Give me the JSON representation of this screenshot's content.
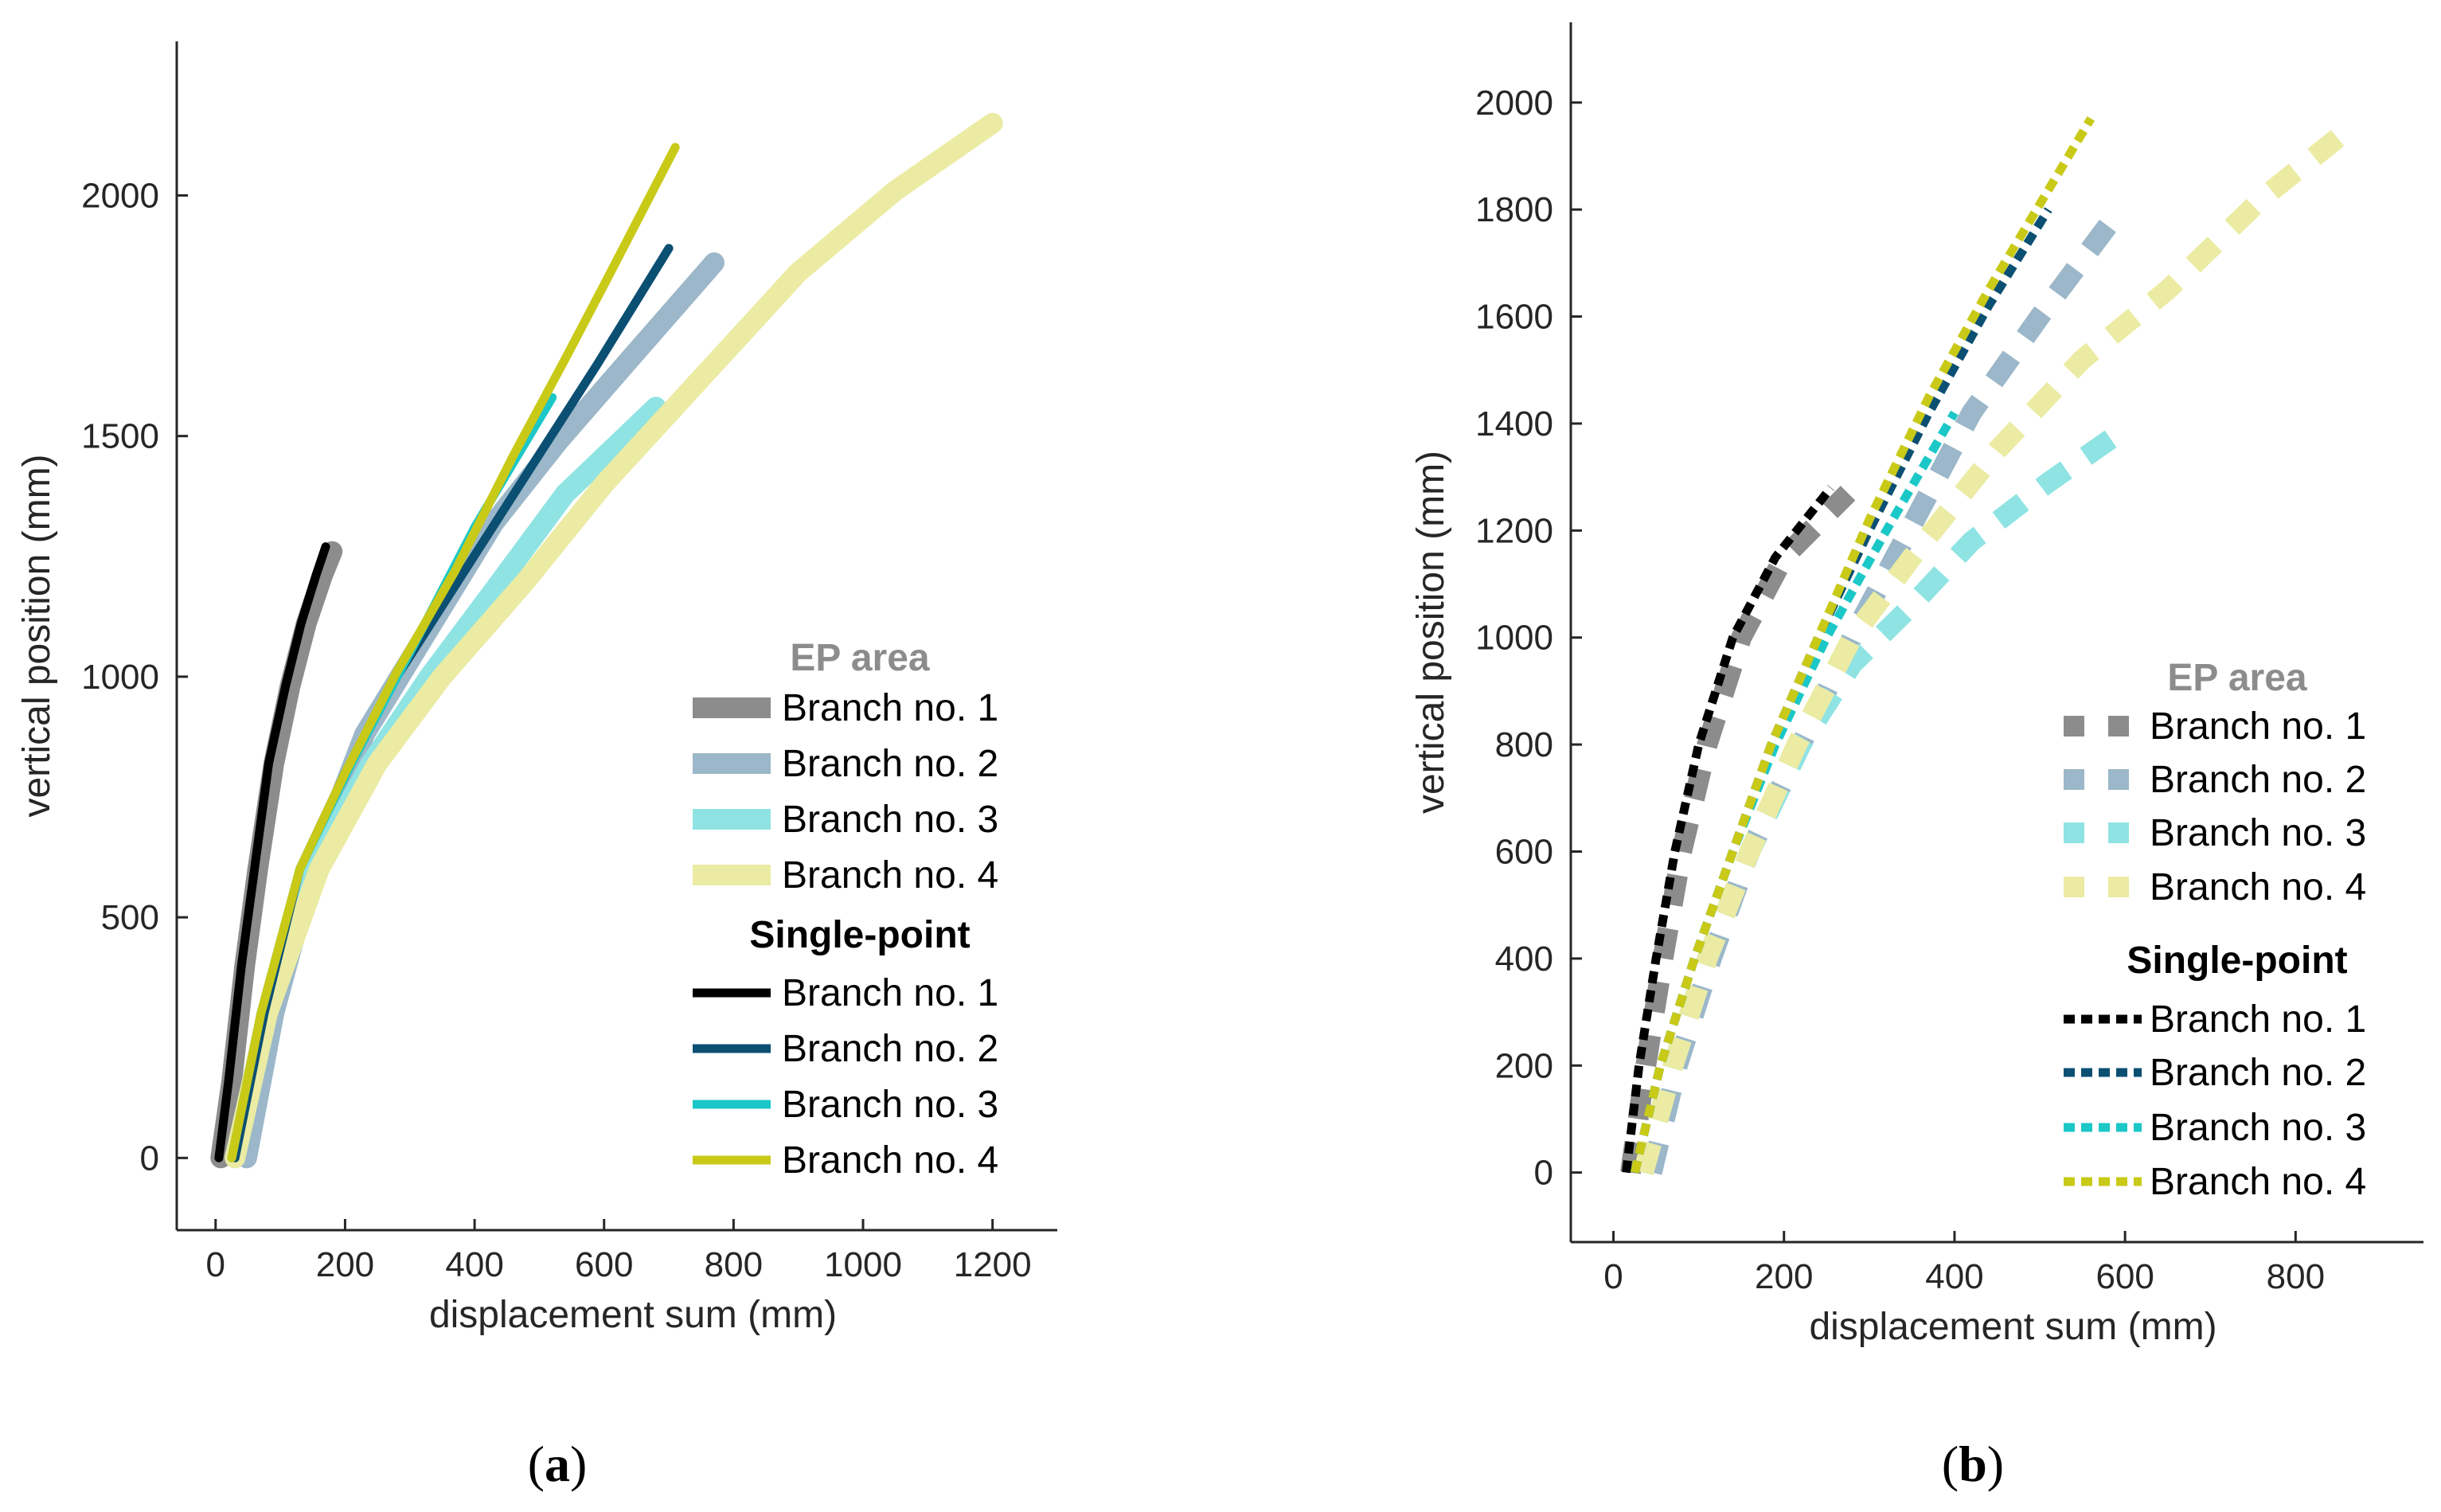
{
  "chart_data": [
    {
      "type": "line",
      "panel_label": "a",
      "xlabel": "displacement sum (mm)",
      "ylabel": "vertical position (mm)",
      "xlim": [
        -60,
        1300
      ],
      "ylim": [
        -150,
        2320
      ],
      "xticks": [
        0,
        200,
        400,
        600,
        800,
        1000,
        1200
      ],
      "yticks": [
        0,
        500,
        1000,
        1500,
        2000
      ],
      "grid": false,
      "legend_placement": "lower-right",
      "legend_groups": [
        {
          "title": "EP area",
          "group": "ep"
        },
        {
          "title": "Single-point",
          "group": "sp"
        }
      ],
      "series": [
        {
          "name": "Branch no. 1",
          "group": "ep",
          "color": "#8c8c8c",
          "style": "solid",
          "points": [
            [
              8,
              0
            ],
            [
              25,
              160
            ],
            [
              45,
              400
            ],
            [
              65,
              600
            ],
            [
              90,
              820
            ],
            [
              115,
              980
            ],
            [
              140,
              1110
            ],
            [
              165,
              1210
            ],
            [
              180,
              1260
            ]
          ]
        },
        {
          "name": "Branch no. 2",
          "group": "ep",
          "color": "#9bb7c9",
          "style": "solid",
          "points": [
            [
              48,
              0
            ],
            [
              90,
              300
            ],
            [
              150,
              600
            ],
            [
              230,
              880
            ],
            [
              330,
              1100
            ],
            [
              430,
              1320
            ],
            [
              530,
              1490
            ],
            [
              640,
              1660
            ],
            [
              770,
              1860
            ]
          ]
        },
        {
          "name": "Branch no. 3",
          "group": "ep",
          "color": "#8fe3e3",
          "style": "solid",
          "points": [
            [
              30,
              0
            ],
            [
              80,
              300
            ],
            [
              150,
              600
            ],
            [
              240,
              820
            ],
            [
              330,
              1000
            ],
            [
              430,
              1180
            ],
            [
              540,
              1380
            ],
            [
              680,
              1560
            ]
          ]
        },
        {
          "name": "Branch no. 4",
          "group": "ep",
          "color": "#ebeba3",
          "style": "solid",
          "points": [
            [
              30,
              0
            ],
            [
              80,
              300
            ],
            [
              160,
              600
            ],
            [
              250,
              820
            ],
            [
              350,
              1000
            ],
            [
              480,
              1200
            ],
            [
              600,
              1400
            ],
            [
              750,
              1620
            ],
            [
              900,
              1840
            ],
            [
              1050,
              2010
            ],
            [
              1200,
              2150
            ]
          ]
        },
        {
          "name": "Branch no. 1",
          "group": "sp",
          "color": "#000000",
          "style": "solid",
          "points": [
            [
              5,
              0
            ],
            [
              20,
              160
            ],
            [
              40,
              400
            ],
            [
              60,
              600
            ],
            [
              82,
              820
            ],
            [
              108,
              980
            ],
            [
              132,
              1110
            ],
            [
              155,
              1210
            ],
            [
              170,
              1270
            ]
          ]
        },
        {
          "name": "Branch no. 2",
          "group": "sp",
          "color": "#0b4f73",
          "style": "solid",
          "points": [
            [
              30,
              0
            ],
            [
              75,
              300
            ],
            [
              130,
              600
            ],
            [
              200,
              800
            ],
            [
              280,
              1000
            ],
            [
              380,
              1210
            ],
            [
              480,
              1420
            ],
            [
              590,
              1650
            ],
            [
              700,
              1890
            ]
          ]
        },
        {
          "name": "Branch no. 3",
          "group": "sp",
          "color": "#1cc7c7",
          "style": "solid",
          "points": [
            [
              25,
              0
            ],
            [
              70,
              300
            ],
            [
              130,
              600
            ],
            [
              210,
              820
            ],
            [
              300,
              1050
            ],
            [
              400,
              1310
            ],
            [
              520,
              1580
            ]
          ]
        },
        {
          "name": "Branch no. 4",
          "group": "sp",
          "color": "#c9c918",
          "style": "solid",
          "points": [
            [
              25,
              0
            ],
            [
              70,
              300
            ],
            [
              130,
              600
            ],
            [
              200,
              800
            ],
            [
              280,
              1010
            ],
            [
              370,
              1220
            ],
            [
              460,
              1460
            ],
            [
              540,
              1660
            ],
            [
              610,
              1840
            ],
            [
              710,
              2100
            ]
          ]
        }
      ]
    },
    {
      "type": "line",
      "panel_label": "b",
      "xlabel": "displacement sum (mm)",
      "ylabel": "vertical position (mm)",
      "xlim": [
        -50,
        950
      ],
      "ylim": [
        -130,
        2150
      ],
      "xticks": [
        0,
        200,
        400,
        600,
        800
      ],
      "yticks": [
        0,
        200,
        400,
        600,
        800,
        1000,
        1200,
        1400,
        1600,
        1800,
        2000
      ],
      "grid": false,
      "legend_placement": "lower-right",
      "legend_groups": [
        {
          "title": "EP area",
          "group": "ep"
        },
        {
          "title": "Single-point",
          "group": "sp"
        }
      ],
      "series": [
        {
          "name": "Branch no. 1",
          "group": "ep",
          "color": "#8c8c8c",
          "style": "dashed",
          "points": [
            [
              20,
              0
            ],
            [
              38,
              200
            ],
            [
              58,
              400
            ],
            [
              80,
              600
            ],
            [
              110,
              800
            ],
            [
              150,
              1000
            ],
            [
              200,
              1150
            ],
            [
              275,
              1270
            ]
          ]
        },
        {
          "name": "Branch no. 2",
          "group": "ep",
          "color": "#9bb7c9",
          "style": "dashed",
          "points": [
            [
              45,
              0
            ],
            [
              75,
              200
            ],
            [
              115,
              400
            ],
            [
              160,
              600
            ],
            [
              220,
              800
            ],
            [
              280,
              1000
            ],
            [
              340,
              1180
            ],
            [
              420,
              1420
            ],
            [
              500,
              1600
            ],
            [
              580,
              1770
            ]
          ]
        },
        {
          "name": "Branch no. 3",
          "group": "ep",
          "color": "#8fe3e3",
          "style": "dashed",
          "points": [
            [
              35,
              0
            ],
            [
              70,
              200
            ],
            [
              110,
              400
            ],
            [
              160,
              600
            ],
            [
              220,
              800
            ],
            [
              280,
              950
            ],
            [
              350,
              1060
            ],
            [
              420,
              1180
            ],
            [
              510,
              1290
            ],
            [
              600,
              1390
            ]
          ]
        },
        {
          "name": "Branch no. 4",
          "group": "ep",
          "color": "#ebeba3",
          "style": "dashed",
          "points": [
            [
              35,
              0
            ],
            [
              70,
              200
            ],
            [
              110,
              400
            ],
            [
              160,
              600
            ],
            [
              215,
              800
            ],
            [
              280,
              1000
            ],
            [
              350,
              1150
            ],
            [
              450,
              1350
            ],
            [
              550,
              1520
            ],
            [
              650,
              1650
            ],
            [
              760,
              1820
            ],
            [
              870,
              1960
            ]
          ]
        },
        {
          "name": "Branch no. 1",
          "group": "sp",
          "color": "#000000",
          "style": "dotted",
          "points": [
            [
              15,
              0
            ],
            [
              30,
              200
            ],
            [
              50,
              400
            ],
            [
              72,
              600
            ],
            [
              100,
              800
            ],
            [
              140,
              1000
            ],
            [
              190,
              1150
            ],
            [
              255,
              1280
            ]
          ]
        },
        {
          "name": "Branch no. 2",
          "group": "sp",
          "color": "#0b4f73",
          "style": "dotted",
          "points": [
            [
              25,
              0
            ],
            [
              55,
              200
            ],
            [
              95,
              400
            ],
            [
              140,
              600
            ],
            [
              185,
              800
            ],
            [
              240,
              1000
            ],
            [
              300,
              1200
            ],
            [
              370,
              1420
            ],
            [
              440,
              1620
            ],
            [
              510,
              1800
            ]
          ]
        },
        {
          "name": "Branch no. 3",
          "group": "sp",
          "color": "#1cc7c7",
          "style": "dotted",
          "points": [
            [
              25,
              0
            ],
            [
              55,
              200
            ],
            [
              95,
              400
            ],
            [
              140,
              600
            ],
            [
              190,
              800
            ],
            [
              250,
              1000
            ],
            [
              320,
              1200
            ],
            [
              400,
              1420
            ]
          ]
        },
        {
          "name": "Branch no. 4",
          "group": "sp",
          "color": "#c9c918",
          "style": "dotted",
          "points": [
            [
              25,
              0
            ],
            [
              55,
              200
            ],
            [
              95,
              400
            ],
            [
              140,
              600
            ],
            [
              185,
              800
            ],
            [
              240,
              1000
            ],
            [
              300,
              1220
            ],
            [
              370,
              1450
            ],
            [
              440,
              1650
            ],
            [
              500,
              1810
            ],
            [
              560,
              1970
            ]
          ]
        }
      ]
    }
  ]
}
